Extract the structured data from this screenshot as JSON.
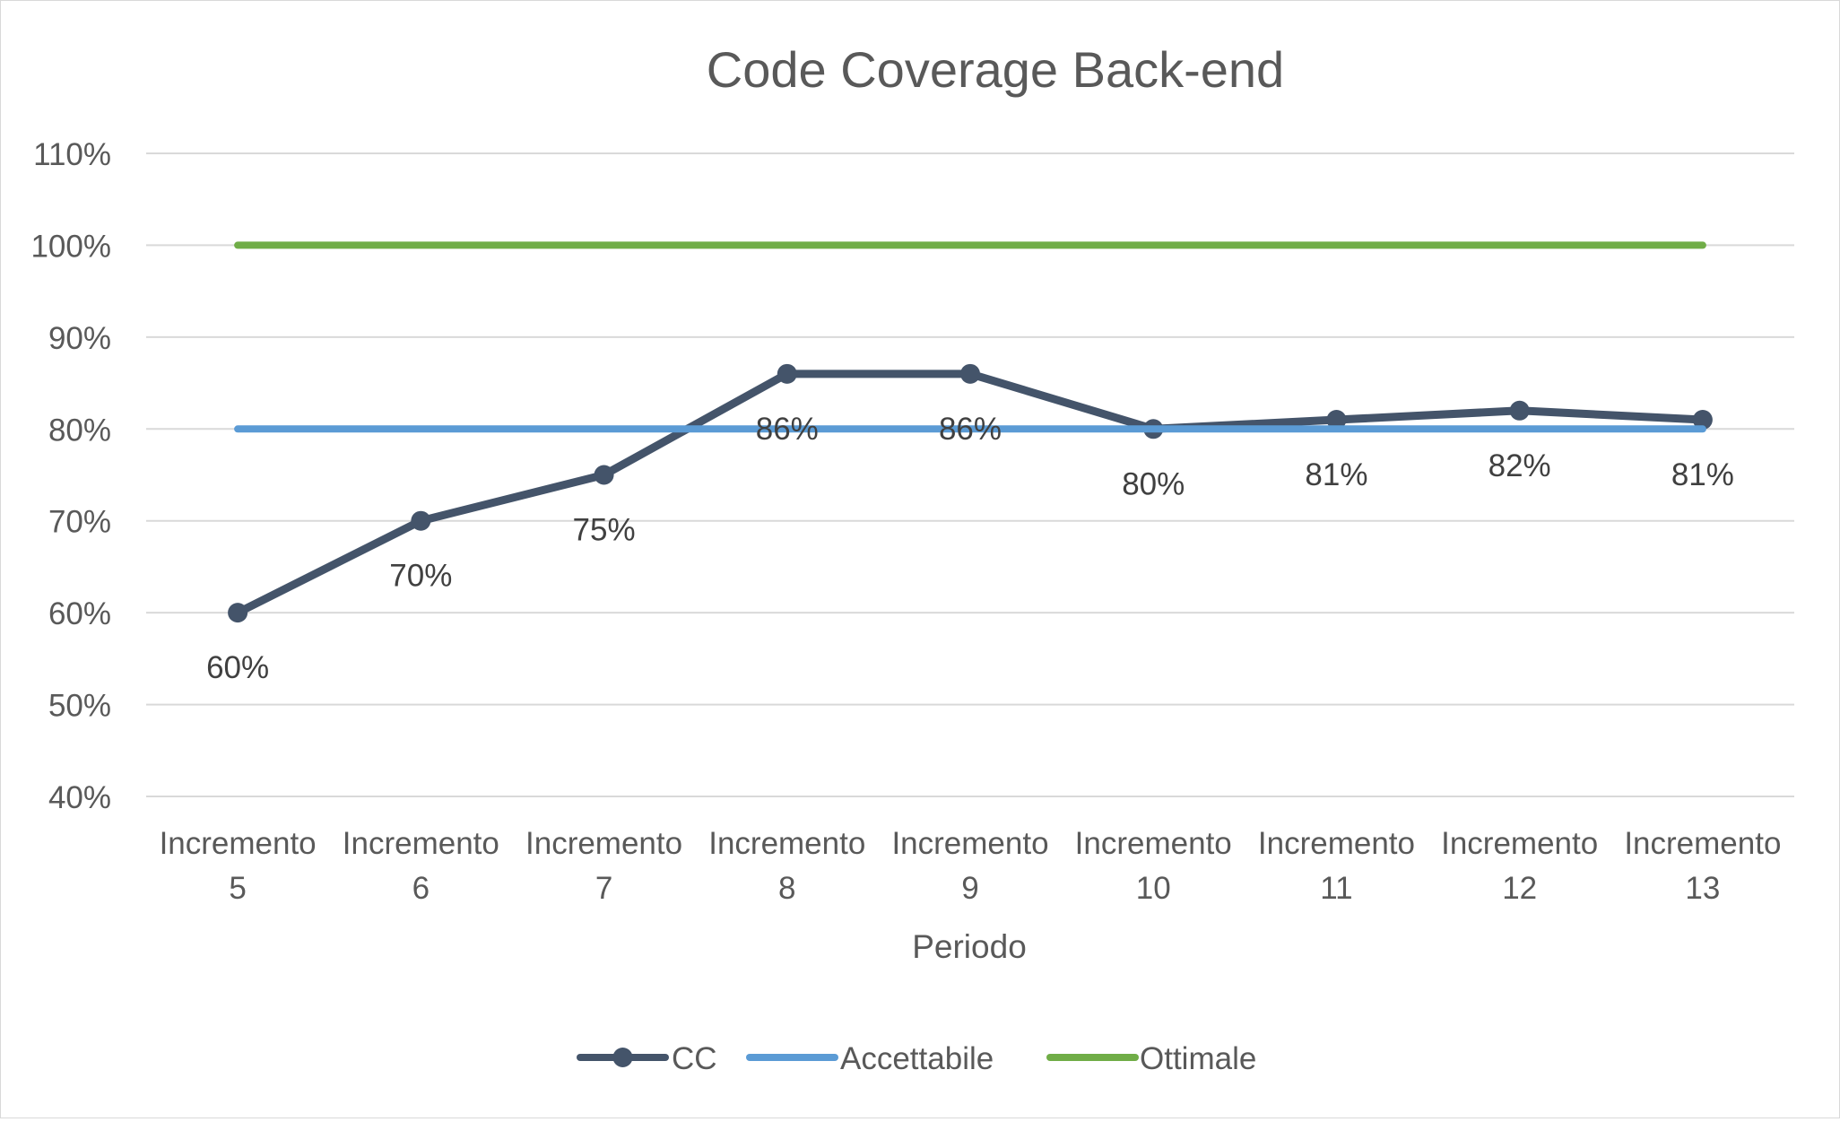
{
  "chart_data": {
    "type": "line",
    "title": "Code Coverage Back-end",
    "xlabel": "Periodo",
    "ylabel": "",
    "categories": [
      [
        "Incremento",
        "5"
      ],
      [
        "Incremento",
        "6"
      ],
      [
        "Incremento",
        "7"
      ],
      [
        "Incremento",
        "8"
      ],
      [
        "Incremento",
        "9"
      ],
      [
        "Incremento",
        "10"
      ],
      [
        "Incremento",
        "11"
      ],
      [
        "Incremento",
        "12"
      ],
      [
        "Incremento",
        "13"
      ]
    ],
    "ylim": [
      0.4,
      1.1
    ],
    "yticks": [
      0.4,
      0.5,
      0.6,
      0.7,
      0.8,
      0.9,
      1.0,
      1.1
    ],
    "ytick_labels": [
      "40%",
      "50%",
      "60%",
      "70%",
      "80%",
      "90%",
      "100%",
      "110%"
    ],
    "grid": true,
    "legend_position": "bottom",
    "series": [
      {
        "name": "CC",
        "values": [
          0.6,
          0.7,
          0.75,
          0.86,
          0.86,
          0.8,
          0.81,
          0.82,
          0.81
        ],
        "labels": [
          "60%",
          "70%",
          "75%",
          "86%",
          "86%",
          "80%",
          "81%",
          "82%",
          "81%"
        ],
        "color": "#44546a",
        "markers": true
      },
      {
        "name": "Accettabile",
        "values": [
          0.8,
          0.8,
          0.8,
          0.8,
          0.8,
          0.8,
          0.8,
          0.8,
          0.8
        ],
        "color": "#5b9bd5",
        "markers": false
      },
      {
        "name": "Ottimale",
        "values": [
          1.0,
          1.0,
          1.0,
          1.0,
          1.0,
          1.0,
          1.0,
          1.0,
          1.0
        ],
        "color": "#70ad47",
        "markers": false
      }
    ]
  }
}
